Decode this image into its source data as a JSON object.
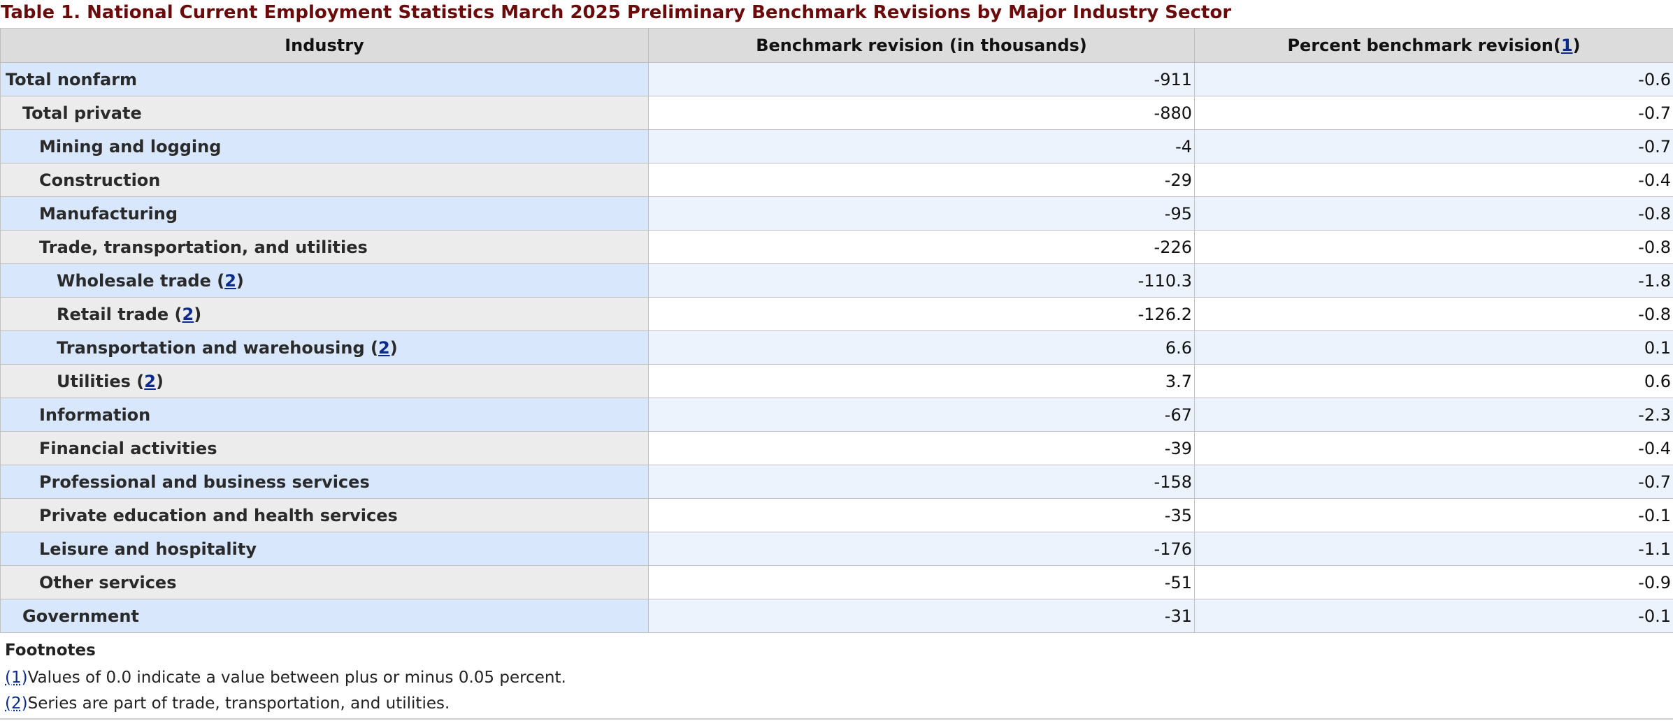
{
  "caption": "Table 1. National Current Employment Statistics March 2025 Preliminary Benchmark Revisions by Major Industry Sector",
  "headers": {
    "industry": "Industry",
    "revision": "Benchmark revision (in thousands)",
    "percent": "Percent benchmark revision",
    "percent_ref": "1"
  },
  "rows": [
    {
      "industry": "Total nonfarm",
      "level": 0,
      "revision": "-911",
      "percent": "-0.6"
    },
    {
      "industry": "Total private",
      "level": 1,
      "revision": "-880",
      "percent": "-0.7"
    },
    {
      "industry": "Mining and logging",
      "level": 2,
      "revision": "-4",
      "percent": "-0.7"
    },
    {
      "industry": "Construction",
      "level": 2,
      "revision": "-29",
      "percent": "-0.4"
    },
    {
      "industry": "Manufacturing",
      "level": 2,
      "revision": "-95",
      "percent": "-0.8"
    },
    {
      "industry": "Trade, transportation, and utilities",
      "level": 2,
      "revision": "-226",
      "percent": "-0.8"
    },
    {
      "industry": "Wholesale trade",
      "level": 3,
      "ref": "2",
      "revision": "-110.3",
      "percent": "-1.8"
    },
    {
      "industry": "Retail trade",
      "level": 3,
      "ref": "2",
      "revision": "-126.2",
      "percent": "-0.8"
    },
    {
      "industry": "Transportation and warehousing",
      "level": 3,
      "ref": "2",
      "revision": "6.6",
      "percent": "0.1"
    },
    {
      "industry": "Utilities",
      "level": 3,
      "ref": "2",
      "revision": "3.7",
      "percent": "0.6"
    },
    {
      "industry": "Information",
      "level": 2,
      "revision": "-67",
      "percent": "-2.3"
    },
    {
      "industry": "Financial activities",
      "level": 2,
      "revision": "-39",
      "percent": "-0.4"
    },
    {
      "industry": "Professional and business services",
      "level": 2,
      "revision": "-158",
      "percent": "-0.7"
    },
    {
      "industry": "Private education and health services",
      "level": 2,
      "revision": "-35",
      "percent": "-0.1"
    },
    {
      "industry": "Leisure and hospitality",
      "level": 2,
      "revision": "-176",
      "percent": "-1.1"
    },
    {
      "industry": "Other services",
      "level": 2,
      "revision": "-51",
      "percent": "-0.9"
    },
    {
      "industry": "Government",
      "level": 1,
      "revision": "-31",
      "percent": "-0.1"
    }
  ],
  "footnotes": {
    "title": "Footnotes",
    "items": [
      {
        "marker": "(1)",
        "text": "Values of 0.0 indicate a value between plus or minus 0.05 percent."
      },
      {
        "marker": "(2)",
        "text": "Series are part of trade, transportation, and utilities."
      }
    ]
  },
  "colors": {
    "caption": "#6b0a0a",
    "header_bg": "#dcdcdc",
    "row_label_blue": "#d8e7fb",
    "row_label_gray": "#ececec",
    "row_value_blue": "#edf3fd",
    "link": "#0c2a8c"
  }
}
